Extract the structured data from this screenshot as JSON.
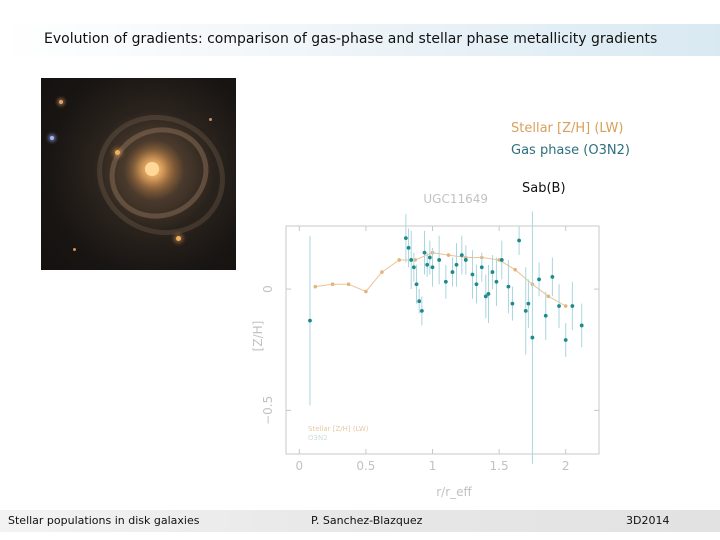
{
  "slide": {
    "title": "Evolution of gradients: comparison of gas-phase and stellar phase metallicity gradients",
    "legend_stellar": "Stellar [Z/H] (LW)",
    "legend_gas": "Gas phase (O3N2)",
    "galaxy_type": "Sab(B)",
    "footer_left": "Stellar populations in disk galaxies",
    "footer_center": "P. Sanchez-Blazquez",
    "footer_right": "3D2014"
  },
  "colors": {
    "stellar": "#e6b47a",
    "gas": "#1f8a8a",
    "axis": "#c8c8c8",
    "text_faint": "#c2c2c2"
  },
  "chart_data": {
    "type": "scatter",
    "title": "UGC11649",
    "xlabel": "r/r_eff",
    "ylabel": "[Z/H]",
    "xlim": [
      -0.1,
      2.25
    ],
    "ylim": [
      -0.68,
      0.26
    ],
    "xticks": [
      0,
      0.5,
      1,
      1.5,
      2
    ],
    "xtick_labels": [
      "0",
      "0.5",
      "1",
      "1.5",
      "2"
    ],
    "yticks": [
      0,
      -0.5
    ],
    "ytick_labels": [
      "0",
      "−0.5"
    ],
    "inset_legend": [
      "Stellar [Z/H] (LW)",
      "O3N2"
    ],
    "series": [
      {
        "name": "Stellar [Z/H] (LW)",
        "style": "line",
        "x": [
          0.12,
          0.25,
          0.37,
          0.5,
          0.62,
          0.75,
          0.87,
          1.0,
          1.12,
          1.25,
          1.37,
          1.5,
          1.62,
          1.75,
          1.87,
          2.0
        ],
        "y": [
          0.01,
          0.02,
          0.02,
          -0.01,
          0.07,
          0.12,
          0.12,
          0.15,
          0.14,
          0.13,
          0.13,
          0.12,
          0.08,
          0.02,
          -0.03,
          -0.07
        ]
      },
      {
        "name": "Gas phase (O3N2)",
        "style": "points",
        "x": [
          0.08,
          0.8,
          0.82,
          0.84,
          0.86,
          0.88,
          0.9,
          0.92,
          0.94,
          0.96,
          0.98,
          1.0,
          1.05,
          1.1,
          1.15,
          1.18,
          1.22,
          1.25,
          1.3,
          1.33,
          1.37,
          1.4,
          1.42,
          1.45,
          1.48,
          1.52,
          1.57,
          1.6,
          1.65,
          1.7,
          1.72,
          1.75,
          1.8,
          1.85,
          1.9,
          1.95,
          2.0,
          2.05,
          2.12
        ],
        "y": [
          -0.13,
          0.21,
          0.17,
          0.12,
          0.09,
          0.02,
          -0.05,
          -0.09,
          0.15,
          0.1,
          0.13,
          0.09,
          0.12,
          0.03,
          0.07,
          0.1,
          0.14,
          0.12,
          0.06,
          0.02,
          0.09,
          -0.03,
          -0.02,
          0.07,
          0.03,
          0.12,
          0.01,
          -0.06,
          0.2,
          -0.09,
          -0.06,
          -0.2,
          0.04,
          -0.11,
          0.05,
          -0.07,
          -0.21,
          -0.07,
          -0.15
        ],
        "err": [
          0.35,
          0.1,
          0.08,
          0.12,
          0.06,
          0.08,
          0.05,
          0.06,
          0.09,
          0.05,
          0.07,
          0.08,
          0.1,
          0.07,
          0.06,
          0.09,
          0.08,
          0.06,
          0.1,
          0.08,
          0.06,
          0.09,
          0.12,
          0.07,
          0.1,
          0.08,
          0.11,
          0.07,
          0.06,
          0.18,
          0.1,
          0.52,
          0.07,
          0.1,
          0.08,
          0.09,
          0.07,
          0.1,
          0.09
        ]
      }
    ]
  }
}
